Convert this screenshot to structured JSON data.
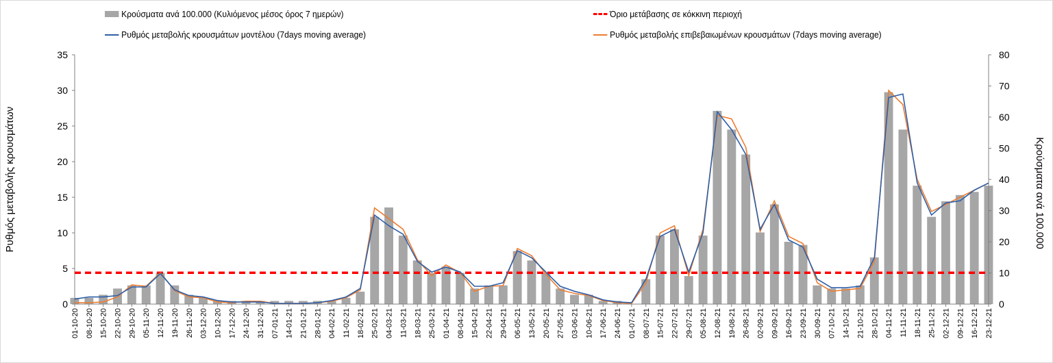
{
  "legend": {
    "bars": "Κρούσματα ανά 100.000 (Κυλιόμενος μέσος όρος 7 ημερών)",
    "threshold": "Όριο μετάβασης σε κόκκινη περιοχή",
    "model": "Ρυθμός μεταβολής κρουσμάτων μοντέλου (7days moving average)",
    "confirmed": "Ρυθμός μεταβολής επιβεβαιωμένων κρουσμάτων (7days moving average)"
  },
  "colors": {
    "bars": "#a6a6a6",
    "threshold": "#ff0000",
    "model": "#2e5fa8",
    "confirmed": "#ed7d31",
    "axis": "#808080"
  },
  "chart_data": {
    "type": "bar",
    "ylabel": "Ρυθμός μεταβολής κρουσμάτων",
    "y2label": "Κρούσματα ανά 100.000",
    "ylim": [
      0,
      35
    ],
    "y2lim": [
      0,
      80
    ],
    "yticks": [
      0,
      5,
      10,
      15,
      20,
      25,
      30,
      35
    ],
    "y2ticks": [
      0,
      10,
      20,
      30,
      40,
      50,
      60,
      70,
      80
    ],
    "threshold_value": 4.4,
    "x_start": "2020-10-01",
    "categories": [
      "01-10-20",
      "08-10-20",
      "15-10-20",
      "22-10-20",
      "29-10-20",
      "05-11-20",
      "12-11-20",
      "19-11-20",
      "26-11-20",
      "03-12-20",
      "10-12-20",
      "17-12-20",
      "24-12-20",
      "31-12-20",
      "07-01-21",
      "14-01-21",
      "21-01-21",
      "28-01-21",
      "04-02-21",
      "11-02-21",
      "18-02-21",
      "25-02-21",
      "04-03-21",
      "11-03-21",
      "18-03-21",
      "25-03-21",
      "01-04-21",
      "08-04-21",
      "15-04-21",
      "22-04-21",
      "29-04-21",
      "06-05-21",
      "13-05-21",
      "20-05-21",
      "27-05-21",
      "03-06-21",
      "10-06-21",
      "17-06-21",
      "24-06-21",
      "01-07-21",
      "08-07-21",
      "15-07-21",
      "22-07-21",
      "29-07-21",
      "05-08-21",
      "12-08-21",
      "19-08-21",
      "26-08-21",
      "02-09-21",
      "09-09-21",
      "16-09-21",
      "23-09-21",
      "30-09-21",
      "07-10-21",
      "14-10-21",
      "21-10-21",
      "28-10-21",
      "04-11-21",
      "11-11-21",
      "18-11-21",
      "25-11-21",
      "02-12-21",
      "09-12-21",
      "16-12-21",
      "23-12-21"
    ],
    "bars_per100k": [
      2,
      2,
      3,
      5,
      6,
      6,
      10,
      6,
      3,
      2,
      1,
      1,
      1,
      1,
      1,
      1,
      1,
      1,
      1,
      2,
      4,
      28,
      31,
      22,
      14,
      10,
      12,
      10,
      5,
      6,
      6,
      17,
      14,
      10,
      5,
      3,
      3,
      1,
      1,
      0,
      8,
      22,
      24,
      9,
      22,
      62,
      56,
      48,
      23,
      32,
      20,
      19,
      6,
      5,
      5,
      6,
      15,
      68,
      56,
      38,
      28,
      33,
      35,
      36,
      38
    ],
    "model_rate": [
      0.7,
      1.0,
      1.0,
      1.2,
      2.4,
      2.4,
      4.3,
      2.0,
      1.2,
      1.0,
      0.5,
      0.3,
      0.3,
      0.3,
      0.1,
      0.1,
      0.1,
      0.2,
      0.5,
      1.0,
      2.2,
      12.5,
      11.0,
      9.8,
      6.0,
      4.5,
      5.2,
      4.5,
      2.5,
      2.5,
      3.0,
      7.5,
      6.5,
      4.5,
      2.5,
      1.8,
      1.3,
      0.6,
      0.3,
      0.2,
      3.5,
      9.5,
      10.5,
      4.5,
      10.0,
      27.0,
      24.5,
      21.0,
      10.5,
      14.0,
      9.0,
      8.0,
      3.5,
      2.3,
      2.3,
      2.5,
      6.5,
      29.0,
      29.5,
      17.0,
      12.5,
      14.2,
      14.5,
      16.0,
      17.0
    ],
    "confirmed_rate": [
      0.2,
      0.2,
      0.3,
      1.0,
      2.7,
      2.5,
      4.4,
      1.9,
      1.0,
      0.9,
      0.3,
      0.2,
      0.4,
      0.4,
      0.1,
      0.1,
      0.1,
      0.2,
      0.4,
      0.9,
      2.0,
      13.5,
      12.0,
      10.5,
      6.2,
      4.0,
      5.5,
      4.4,
      1.8,
      2.5,
      2.6,
      7.8,
      6.8,
      4.2,
      2.0,
      1.5,
      1.2,
      0.5,
      0.2,
      0.1,
      3.0,
      10.0,
      11.0,
      4.0,
      10.5,
      26.5,
      26.0,
      22.0,
      10.2,
      14.5,
      9.5,
      8.5,
      3.0,
      1.8,
      2.0,
      2.2,
      6.0,
      30.0,
      28.0,
      17.5,
      13.0,
      14.0,
      15.0,
      16.0,
      17.0
    ]
  }
}
